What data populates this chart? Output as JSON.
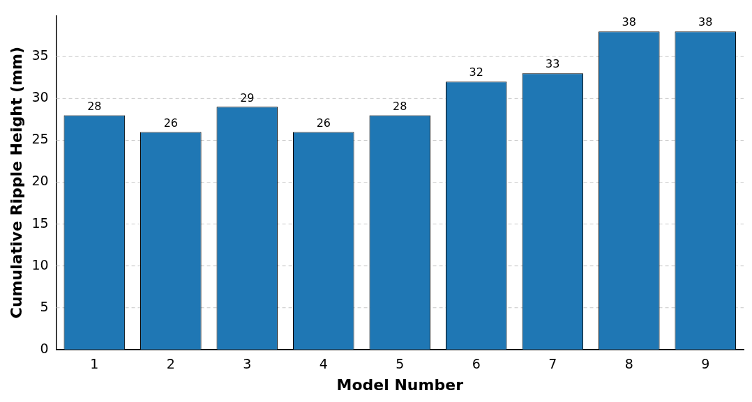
{
  "chart_data": {
    "type": "bar",
    "xlabel": "Model Number",
    "ylabel": "Cumulative Ripple Height (mm)",
    "categories": [
      "1",
      "2",
      "3",
      "4",
      "5",
      "6",
      "7",
      "8",
      "9"
    ],
    "values": [
      28,
      26,
      29,
      26,
      28,
      32,
      33,
      38,
      38
    ],
    "color": "#1f77b4",
    "ylim": [
      0,
      39.9
    ],
    "yticks": [
      0,
      5,
      10,
      15,
      20,
      25,
      30,
      35
    ],
    "grid": "y",
    "data_labels": true,
    "legend": false
  }
}
